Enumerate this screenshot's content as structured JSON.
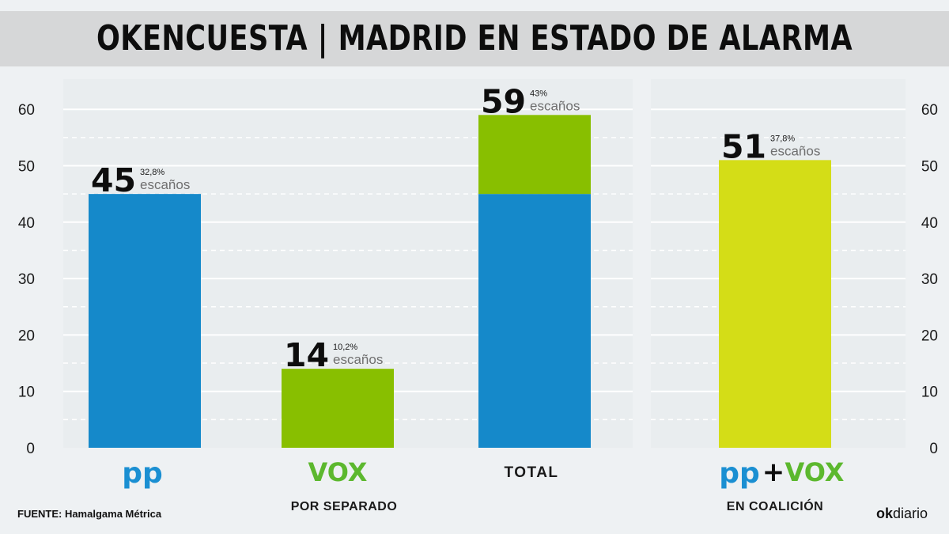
{
  "title": "OKENCUESTA | MADRID EN ESTADO DE ALARMA",
  "source": "FUENTE: Hamalgama Métrica",
  "brand": {
    "ok": "ok",
    "rest": "diario"
  },
  "colors": {
    "pp": "#1589ca",
    "vox": "#88bf00",
    "coalition": "#d4dd17",
    "pp_logo": "#1a8fd2",
    "vox_logo": "#5cb82e"
  },
  "logos": {
    "pp": "pp",
    "vox": "VOX",
    "plus": "+"
  },
  "chart_data": [
    {
      "type": "bar",
      "stacked": true,
      "group_label": "POR SEPARADO",
      "categories": [
        "PP",
        "VOX",
        "TOTAL"
      ],
      "category_labels": [
        "",
        "",
        "TOTAL"
      ],
      "category_icons": [
        "pp-logo",
        "vox-logo",
        ""
      ],
      "series": [
        {
          "key": "pp",
          "values": [
            45,
            0,
            45
          ]
        },
        {
          "key": "vox",
          "values": [
            0,
            14,
            14
          ]
        }
      ],
      "labels": [
        {
          "value": "45",
          "pct": "32,8%",
          "unit": "escaños"
        },
        {
          "value": "14",
          "pct": "10,2%",
          "unit": "escaños"
        },
        {
          "value": "59",
          "pct": "43%",
          "unit": "escaños"
        }
      ],
      "ylim": [
        0,
        60
      ],
      "yticks": [
        0,
        10,
        20,
        30,
        40,
        50,
        60
      ],
      "grid": true
    },
    {
      "type": "bar",
      "group_label": "EN COALICIÓN",
      "categories": [
        "PP + VOX"
      ],
      "category_icons": [
        "pp-plus-vox-logo"
      ],
      "values": [
        51
      ],
      "labels": [
        {
          "value": "51",
          "pct": "37,8%",
          "unit": "escaños"
        }
      ],
      "ylim": [
        0,
        60
      ],
      "yticks": [
        0,
        10,
        20,
        30,
        40,
        50,
        60
      ],
      "grid": true
    }
  ]
}
